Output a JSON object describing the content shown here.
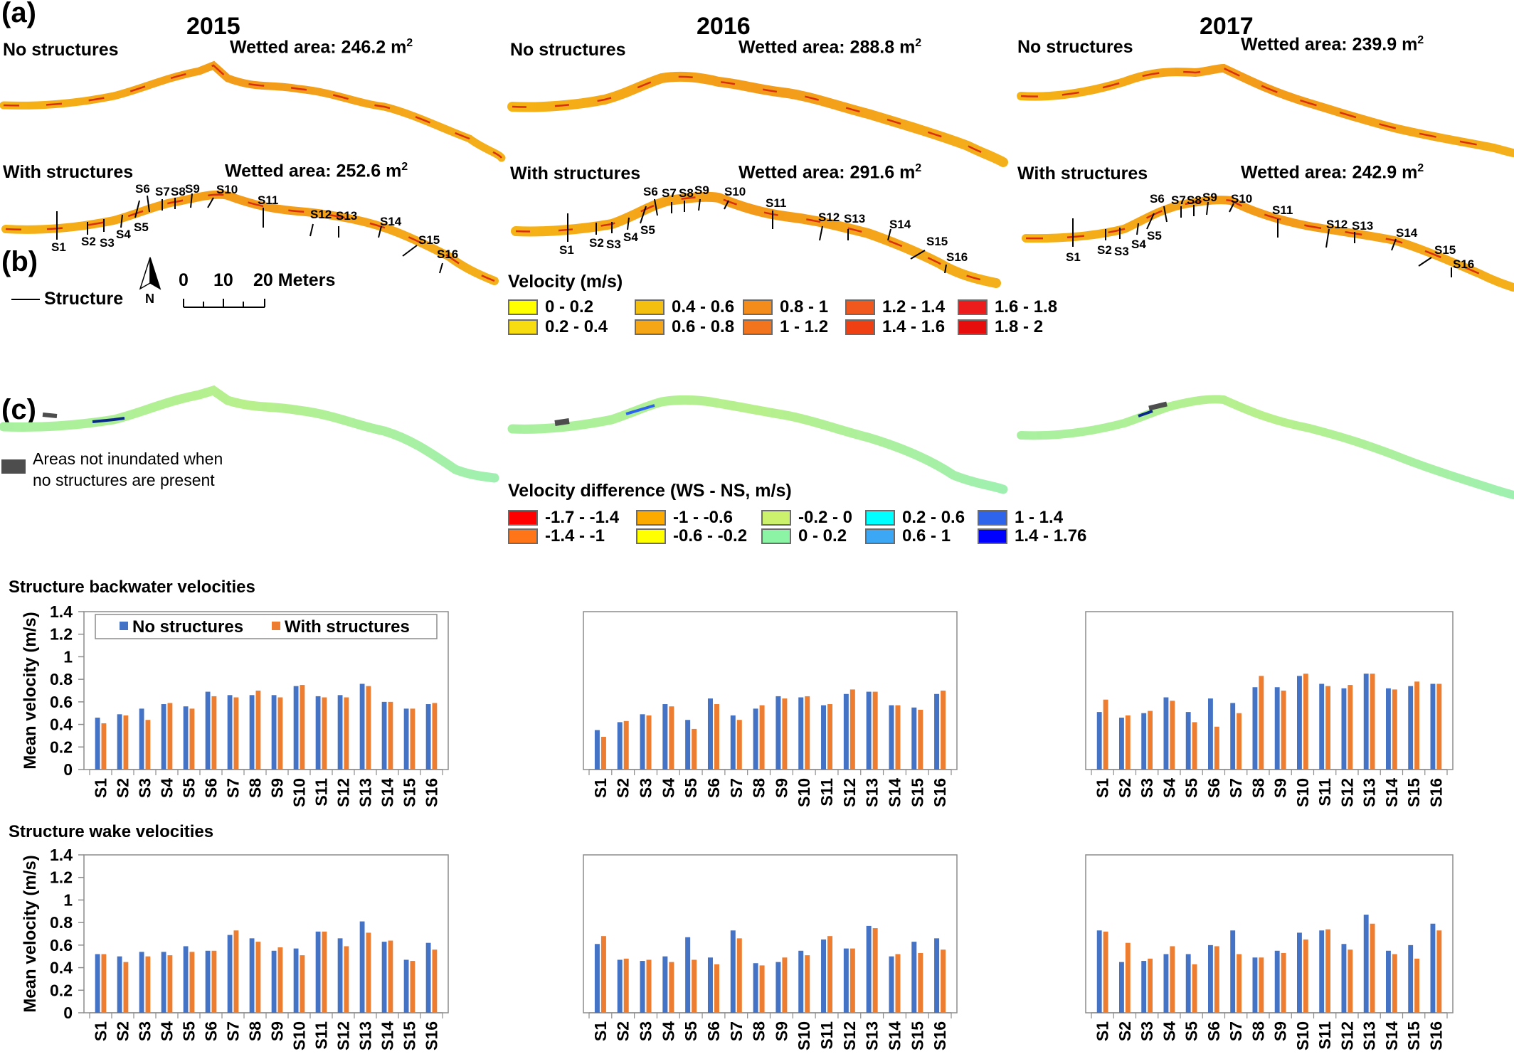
{
  "panels": {
    "a": "(a)",
    "b": "(b)",
    "c": "(c)"
  },
  "years": [
    "2015",
    "2016",
    "2017"
  ],
  "maps": {
    "no_structures_label": "No structures",
    "with_structures_label": "With structures",
    "wetted_area_prefix": "Wetted area:",
    "unit": "m",
    "unit_sup": "2",
    "areas_no_structures": [
      "246.2",
      "288.8",
      "239.9"
    ],
    "areas_with_structures": [
      "252.6",
      "291.6",
      "242.9"
    ],
    "structure_ids": [
      "S1",
      "S2",
      "S3",
      "S4",
      "S5",
      "S6",
      "S7",
      "S8",
      "S9",
      "S10",
      "S11",
      "S12",
      "S13",
      "S14",
      "S15",
      "S16"
    ],
    "structure_legend": "Structure",
    "north": "N",
    "scale_labels": [
      "0",
      "10",
      "20 Meters"
    ]
  },
  "velocity_legend": {
    "title": "Velocity (m/s)",
    "items": [
      {
        "label": "0 - 0.2",
        "color": "#ffff00"
      },
      {
        "label": "0.2 - 0.4",
        "color": "#f7dc12"
      },
      {
        "label": "0.4 - 0.6",
        "color": "#f5bf0f"
      },
      {
        "label": "0.6 - 0.8",
        "color": "#f4a617"
      },
      {
        "label": "0.8 - 1",
        "color": "#f48c1b"
      },
      {
        "label": "1 - 1.2",
        "color": "#f2741c"
      },
      {
        "label": "1.2 - 1.4",
        "color": "#f1581d"
      },
      {
        "label": "1.4 - 1.6",
        "color": "#ef4013"
      },
      {
        "label": "1.6 - 1.8",
        "color": "#ed1c1c"
      },
      {
        "label": "1.8 - 2",
        "color": "#e80d0d"
      }
    ]
  },
  "difference_legend": {
    "title": "Velocity difference (WS - NS, m/s)",
    "not_inundated_label_1": "Areas not inundated when",
    "not_inundated_label_2": "no structures are present",
    "not_inundated_color": "#4d4d4d",
    "items": [
      {
        "label": "-1.7 - -1.4",
        "color": "#ff0000"
      },
      {
        "label": "-1.4 - -1",
        "color": "#ff7518"
      },
      {
        "label": "-1 - -0.6",
        "color": "#fdaa00"
      },
      {
        "label": "-0.6 - -0.2",
        "color": "#ffff00"
      },
      {
        "label": "-0.2 - 0",
        "color": "#ccf26d"
      },
      {
        "label": "0 - 0.2",
        "color": "#8cf5a5"
      },
      {
        "label": "0.2 - 0.6",
        "color": "#00ffff"
      },
      {
        "label": "0.6 - 1",
        "color": "#3ca8f5"
      },
      {
        "label": "1 - 1.4",
        "color": "#2e63ec"
      },
      {
        "label": "1.4 - 1.76",
        "color": "#0000ff"
      }
    ]
  },
  "sections": {
    "backwater_title": "Structure backwater velocities",
    "wake_title": "Structure wake velocities"
  },
  "chart_data": {
    "type": "bar",
    "ylabel": "Mean velocity (m/s)",
    "ylim": [
      0,
      1.4
    ],
    "yticks": [
      "0",
      "0.2",
      "0.4",
      "0.6",
      "0.8",
      "1",
      "1.2",
      "1.4"
    ],
    "legend": [
      "No structures",
      "With structures"
    ],
    "colors": {
      "no_structures": "#4472c4",
      "with_structures": "#ed7d31"
    },
    "categories": [
      "S1",
      "S2",
      "S3",
      "S4",
      "S5",
      "S6",
      "S7",
      "S8",
      "S9",
      "S10",
      "S11",
      "S12",
      "S13",
      "S14",
      "S15",
      "S16"
    ],
    "charts": [
      {
        "section": "backwater",
        "year": "2015",
        "series": [
          {
            "name": "No structures",
            "values": [
              0.46,
              0.49,
              0.54,
              0.58,
              0.56,
              0.69,
              0.66,
              0.66,
              0.66,
              0.74,
              0.65,
              0.66,
              0.76,
              0.6,
              0.54,
              0.58
            ]
          },
          {
            "name": "With structures",
            "values": [
              0.41,
              0.48,
              0.44,
              0.59,
              0.54,
              0.65,
              0.64,
              0.7,
              0.64,
              0.75,
              0.64,
              0.64,
              0.74,
              0.6,
              0.54,
              0.59
            ]
          }
        ]
      },
      {
        "section": "backwater",
        "year": "2016",
        "series": [
          {
            "name": "No structures",
            "values": [
              0.35,
              0.42,
              0.49,
              0.58,
              0.44,
              0.63,
              0.48,
              0.54,
              0.65,
              0.64,
              0.57,
              0.67,
              0.69,
              0.57,
              0.55,
              0.67
            ]
          },
          {
            "name": "With structures",
            "values": [
              0.29,
              0.43,
              0.48,
              0.56,
              0.36,
              0.58,
              0.44,
              0.57,
              0.63,
              0.65,
              0.58,
              0.71,
              0.69,
              0.57,
              0.53,
              0.7
            ]
          }
        ]
      },
      {
        "section": "backwater",
        "year": "2017",
        "series": [
          {
            "name": "No structures",
            "values": [
              0.51,
              0.46,
              0.5,
              0.64,
              0.51,
              0.63,
              0.59,
              0.73,
              0.73,
              0.83,
              0.76,
              0.72,
              0.85,
              0.72,
              0.74,
              0.76
            ]
          },
          {
            "name": "With structures",
            "values": [
              0.62,
              0.48,
              0.52,
              0.61,
              0.42,
              0.38,
              0.5,
              0.83,
              0.7,
              0.85,
              0.74,
              0.75,
              0.85,
              0.71,
              0.78,
              0.76
            ]
          }
        ]
      },
      {
        "section": "wake",
        "year": "2015",
        "series": [
          {
            "name": "No structures",
            "values": [
              0.52,
              0.5,
              0.54,
              0.54,
              0.59,
              0.55,
              0.69,
              0.66,
              0.55,
              0.57,
              0.72,
              0.66,
              0.81,
              0.63,
              0.47,
              0.62
            ]
          },
          {
            "name": "With structures",
            "values": [
              0.52,
              0.45,
              0.5,
              0.51,
              0.54,
              0.55,
              0.73,
              0.63,
              0.58,
              0.51,
              0.72,
              0.59,
              0.71,
              0.64,
              0.46,
              0.56
            ]
          }
        ]
      },
      {
        "section": "wake",
        "year": "2016",
        "series": [
          {
            "name": "No structures",
            "values": [
              0.61,
              0.47,
              0.46,
              0.5,
              0.67,
              0.49,
              0.73,
              0.44,
              0.45,
              0.55,
              0.65,
              0.57,
              0.77,
              0.5,
              0.63,
              0.66
            ]
          },
          {
            "name": "With structures",
            "values": [
              0.68,
              0.48,
              0.47,
              0.45,
              0.47,
              0.43,
              0.66,
              0.42,
              0.49,
              0.51,
              0.68,
              0.57,
              0.75,
              0.52,
              0.53,
              0.56
            ]
          }
        ]
      },
      {
        "section": "wake",
        "year": "2017",
        "series": [
          {
            "name": "No structures",
            "values": [
              0.73,
              0.45,
              0.46,
              0.52,
              0.52,
              0.6,
              0.73,
              0.49,
              0.55,
              0.71,
              0.73,
              0.61,
              0.87,
              0.55,
              0.6,
              0.79
            ]
          },
          {
            "name": "With structures",
            "values": [
              0.72,
              0.62,
              0.48,
              0.59,
              0.43,
              0.59,
              0.52,
              0.49,
              0.53,
              0.65,
              0.74,
              0.56,
              0.79,
              0.52,
              0.48,
              0.73
            ]
          }
        ]
      }
    ]
  }
}
